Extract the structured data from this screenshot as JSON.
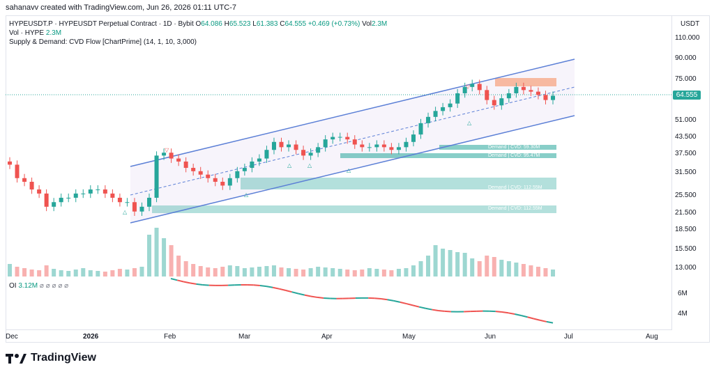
{
  "credit": "sahanavv created with TradingView.com, Jun 26, 2026 01:11 UTC-7",
  "legend": {
    "symbol": "HYPEUSDT.P · HYPEUSDT Perpetual Contract · 1D · Bybit",
    "o_label": "O",
    "o": "64.086",
    "h_label": "H",
    "h": "65.523",
    "l_label": "L",
    "l": "61.383",
    "c_label": "C",
    "c": "64.555",
    "change": "+0.469 (+0.73%)",
    "vol_label": "Vol",
    "vol": "2.3M",
    "vol_line_label": "Vol · HYPE",
    "vol_line_value": "2.3M",
    "indicator": "Supply & Demand: CVD Flow [ChartPrime] (14, 1, 10, 3,000)"
  },
  "currency": "USDT",
  "current_price": "64.555",
  "y_ticks": [
    "110.000",
    "90.000",
    "75.000",
    "64.555",
    "51.000",
    "43.500",
    "37.500",
    "31.500",
    "25.500",
    "21.500",
    "18.500",
    "15.500",
    "13.000"
  ],
  "oi": {
    "label": "OI",
    "value": "3.12M",
    "ticks": [
      "6M",
      "4M"
    ]
  },
  "x_ticks": [
    "Dec",
    "2026",
    "Feb",
    "Mar",
    "Apr",
    "May",
    "Jun",
    "Jul",
    "Aug"
  ],
  "zones": [
    "Demand | CVD: 59.30M",
    "Demand | CVD: 95.47M",
    "Demand | CVD: 112.55M"
  ],
  "brand": "TradingView",
  "colors": {
    "up": "#26a69a",
    "down": "#ef5350",
    "channel": "#5b7fd6",
    "demand": "#26a69a",
    "supply": "#f7a07a"
  },
  "chart_data": {
    "type": "candlestick",
    "scale": "log",
    "x_range": [
      "Dec 2025",
      "Aug 2026"
    ],
    "y_range": [
      13,
      120
    ],
    "closes": [
      34,
      30,
      29,
      27,
      26,
      23,
      24,
      25,
      25,
      26,
      26,
      27,
      27,
      26,
      25,
      24,
      24,
      22,
      23,
      25,
      37,
      38,
      36,
      35,
      33,
      32,
      31,
      30,
      29,
      28,
      30,
      32,
      33,
      35,
      36,
      39,
      42,
      40,
      41,
      39,
      37,
      38,
      40,
      43,
      44,
      44,
      43,
      41,
      40,
      40,
      41,
      40,
      39,
      40,
      42,
      45,
      50,
      53,
      56,
      58,
      60,
      66,
      70,
      72,
      68,
      62,
      59,
      63,
      66,
      70,
      68,
      67,
      65,
      62,
      64.5
    ],
    "channel": {
      "upper": [
        [
          0.18,
          36
        ],
        [
          0.8,
          90
        ]
      ],
      "lower": [
        [
          0.18,
          21
        ],
        [
          0.8,
          53
        ]
      ]
    }
  }
}
